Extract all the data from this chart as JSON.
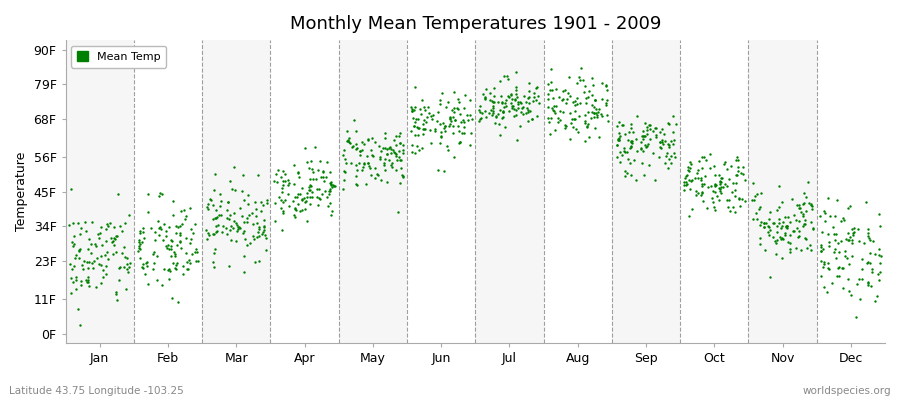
{
  "title": "Monthly Mean Temperatures 1901 - 2009",
  "ylabel": "Temperature",
  "lat_lon_label": "Latitude 43.75 Longitude -103.25",
  "watermark": "worldspecies.org",
  "legend_label": "Mean Temp",
  "dot_color": "#008000",
  "background_color": "#ffffff",
  "plot_bg_color": "#ffffff",
  "yticks": [
    0,
    11,
    23,
    34,
    45,
    56,
    68,
    79,
    90
  ],
  "ytick_labels": [
    "0F",
    "11F",
    "23F",
    "34F",
    "45F",
    "56F",
    "68F",
    "79F",
    "90F"
  ],
  "ylim": [
    -3,
    93
  ],
  "months": [
    "Jan",
    "Feb",
    "Mar",
    "Apr",
    "May",
    "Jun",
    "Jul",
    "Aug",
    "Sep",
    "Oct",
    "Nov",
    "Dec"
  ],
  "month_means": [
    24,
    27,
    36,
    46,
    56,
    66,
    73,
    71,
    60,
    48,
    35,
    26
  ],
  "month_stds": [
    8,
    8,
    6,
    5,
    5,
    5,
    4,
    5,
    5,
    5,
    6,
    8
  ],
  "n_years": 109,
  "seed": 42,
  "dot_size": 3,
  "title_fontsize": 13,
  "axis_fontsize": 9,
  "label_fontsize": 8
}
